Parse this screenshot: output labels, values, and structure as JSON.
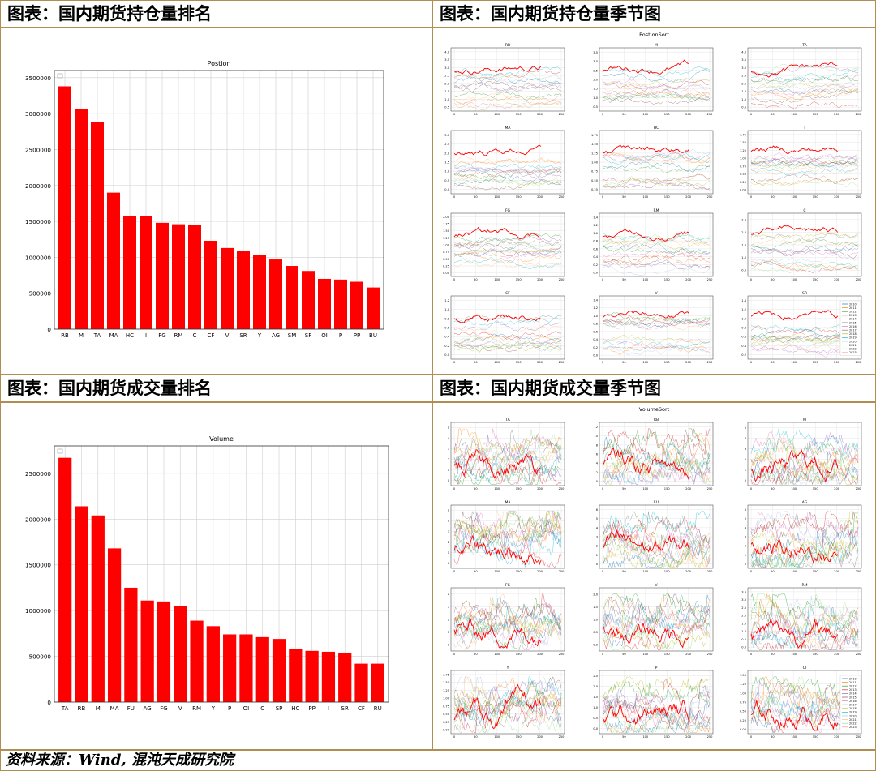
{
  "headers": {
    "position_rank": "图表：国内期货持仓量排名",
    "position_season": "图表：国内期货持仓量季节图",
    "volume_rank": "图表：国内期货成交量排名",
    "volume_season": "图表：国内期货成交量季节图"
  },
  "footer": "资料来源：Wind, 混沌天成研究院",
  "colors": {
    "bar": "#ff0000",
    "border": "#b08e52",
    "highlight_line": "#ff0000"
  },
  "chart_data": [
    {
      "type": "bar",
      "title": "Postion",
      "categories": [
        "RB",
        "M",
        "TA",
        "MA",
        "HC",
        "I",
        "FG",
        "RM",
        "C",
        "CF",
        "V",
        "SR",
        "Y",
        "AG",
        "SM",
        "SF",
        "OI",
        "P",
        "PP",
        "BU"
      ],
      "values": [
        3380000,
        3060000,
        2880000,
        1900000,
        1570000,
        1570000,
        1480000,
        1460000,
        1450000,
        1230000,
        1130000,
        1090000,
        1030000,
        970000,
        880000,
        810000,
        700000,
        690000,
        660000,
        580000
      ],
      "yticks": [
        "0",
        "500000",
        "1000000",
        "1500000",
        "2000000",
        "2500000",
        "3000000",
        "3500000"
      ],
      "ylim": [
        0,
        3600000
      ],
      "grid": true
    },
    {
      "type": "bar",
      "title": "Volume",
      "categories": [
        "TA",
        "RB",
        "M",
        "MA",
        "FU",
        "AG",
        "FG",
        "V",
        "RM",
        "Y",
        "P",
        "OI",
        "C",
        "SP",
        "HC",
        "PP",
        "I",
        "SR",
        "CF",
        "RU"
      ],
      "values": [
        2670000,
        2140000,
        2040000,
        1680000,
        1250000,
        1110000,
        1100000,
        1050000,
        890000,
        830000,
        740000,
        740000,
        710000,
        690000,
        580000,
        560000,
        550000,
        540000,
        420000,
        420000
      ],
      "yticks": [
        "0",
        "500000",
        "1000000",
        "1500000",
        "2000000",
        "2500000"
      ],
      "ylim": [
        0,
        2800000
      ],
      "grid": true
    },
    {
      "type": "line",
      "title": "PostionSort",
      "xticks": [
        "0",
        "50",
        "100",
        "150",
        "200",
        "250"
      ],
      "legend": [
        "2010",
        "2011",
        "2012",
        "2013",
        "2014",
        "2015",
        "2016",
        "2017",
        "2018",
        "2019",
        "2020",
        "2021",
        "2022",
        "2023"
      ],
      "panels": [
        {
          "name": "RB",
          "yticks": [
            "0.5",
            "1.0",
            "1.5",
            "2.0",
            "2.5",
            "3.0",
            "3.5",
            "4.0"
          ]
        },
        {
          "name": "M",
          "yticks": [
            "0.5",
            "1.0",
            "1.5",
            "2.0",
            "2.5",
            "3.0",
            "3.5"
          ]
        },
        {
          "name": "TA",
          "yticks": [
            "0.5",
            "1.0",
            "1.5",
            "2.0",
            "2.5",
            "3.0",
            "3.5",
            "4.0"
          ]
        },
        {
          "name": "MA",
          "yticks": [
            "0.0",
            "0.5",
            "1.0",
            "1.5",
            "2.0",
            "2.5",
            "3.0"
          ]
        },
        {
          "name": "HC",
          "yticks": [
            "0.25",
            "0.50",
            "0.75",
            "1.00",
            "1.25",
            "1.50",
            "1.75"
          ]
        },
        {
          "name": "I",
          "yticks": [
            "0.00",
            "0.25",
            "0.50",
            "0.75",
            "1.00",
            "1.25",
            "1.50",
            "1.75"
          ]
        },
        {
          "name": "FG",
          "yticks": [
            "0.00",
            "0.25",
            "0.50",
            "0.75",
            "1.00",
            "1.25",
            "1.50",
            "1.75",
            "2.00"
          ]
        },
        {
          "name": "RM",
          "yticks": [
            "0.0",
            "0.2",
            "0.4",
            "0.6",
            "0.8",
            "1.0",
            "1.2",
            "1.4"
          ]
        },
        {
          "name": "C",
          "yticks": [
            "0.5",
            "1.0",
            "1.5",
            "2.0",
            "2.5"
          ]
        },
        {
          "name": "CF",
          "yticks": [
            "0.0",
            "0.2",
            "0.4",
            "0.6",
            "0.8",
            "1.0",
            "1.2"
          ]
        },
        {
          "name": "V",
          "yticks": [
            "0.0",
            "0.2",
            "0.4",
            "0.6",
            "0.8",
            "1.0",
            "1.2",
            "1.4"
          ]
        },
        {
          "name": "SR",
          "yticks": [
            "0.2",
            "0.4",
            "0.6",
            "0.8",
            "1.0",
            "1.2",
            "1.4"
          ]
        }
      ]
    },
    {
      "type": "line",
      "title": "VolumeSort",
      "xticks": [
        "0",
        "50",
        "100",
        "150",
        "200",
        "250"
      ],
      "legend": [
        "2010",
        "2011",
        "2012",
        "2013",
        "2014",
        "2015",
        "2016",
        "2017",
        "2018",
        "2019",
        "2020",
        "2021",
        "2022",
        "2023"
      ],
      "panels": [
        {
          "name": "TA",
          "yticks": [
            "0",
            "1",
            "2",
            "3",
            "4",
            "5"
          ]
        },
        {
          "name": "RB",
          "yticks": [
            "0",
            "2",
            "4",
            "6",
            "8",
            "10",
            "12"
          ]
        },
        {
          "name": "M",
          "yticks": [
            "0",
            "1",
            "2",
            "3",
            "4",
            "5"
          ]
        },
        {
          "name": "MA",
          "yticks": [
            "0",
            "1",
            "2",
            "3",
            "4",
            "5"
          ]
        },
        {
          "name": "FU",
          "yticks": [
            "0",
            "1",
            "2",
            "3",
            "4",
            "5",
            "6"
          ]
        },
        {
          "name": "AG",
          "yticks": [
            "0",
            "1",
            "2",
            "3",
            "4",
            "5",
            "6"
          ]
        },
        {
          "name": "FG",
          "yticks": [
            "0",
            "1",
            "2",
            "3",
            "4"
          ]
        },
        {
          "name": "V",
          "yticks": [
            "0.0",
            "0.5",
            "1.0",
            "1.5",
            "2.0"
          ]
        },
        {
          "name": "RM",
          "yticks": [
            "0.0",
            "0.5",
            "1.0",
            "1.5",
            "2.0",
            "2.5",
            "3.0",
            "3.5"
          ]
        },
        {
          "name": "Y",
          "yticks": [
            "0.00",
            "0.25",
            "0.50",
            "0.75",
            "1.00",
            "1.25",
            "1.50",
            "1.75"
          ]
        },
        {
          "name": "P",
          "yticks": [
            "0.0",
            "0.5",
            "1.0",
            "1.5",
            "2.0",
            "2.5"
          ]
        },
        {
          "name": "OI",
          "yticks": [
            "0.00",
            "0.25",
            "0.50",
            "0.75",
            "1.00",
            "1.25",
            "1.50"
          ]
        }
      ]
    }
  ]
}
